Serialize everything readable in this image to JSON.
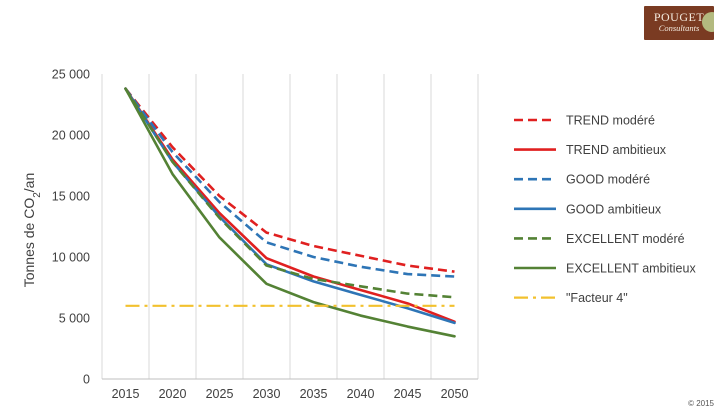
{
  "logo": {
    "name": "POUGET",
    "sub": "Consultants"
  },
  "copyright": "© 2015",
  "chart_data": {
    "type": "line",
    "title": "",
    "xlabel": "",
    "ylabel_main": "Tonnes de CO",
    "ylabel_sub": "2",
    "ylabel_tail": "/an",
    "x": [
      2015,
      2020,
      2025,
      2030,
      2035,
      2040,
      2045,
      2050
    ],
    "ylim": [
      0,
      25000
    ],
    "yticks": [
      0,
      5000,
      10000,
      15000,
      20000,
      25000
    ],
    "ytick_labels": [
      "0",
      "5 000",
      "10 000",
      "15 000",
      "20 000",
      "25 000"
    ],
    "grid": "vertical",
    "legend_position": "right",
    "series": [
      {
        "name": "TREND modéré",
        "color": "#e02020",
        "dash": "dashed",
        "values": [
          23800,
          19000,
          15000,
          12000,
          10900,
          10100,
          9300,
          8800
        ]
      },
      {
        "name": "TREND ambitieux",
        "color": "#e02020",
        "dash": "solid",
        "values": [
          23800,
          18000,
          13600,
          9900,
          8400,
          7300,
          6200,
          4700
        ]
      },
      {
        "name": "GOOD modéré",
        "color": "#2e75b6",
        "dash": "dashed",
        "values": [
          23800,
          18600,
          14500,
          11200,
          10000,
          9200,
          8600,
          8400
        ]
      },
      {
        "name": "GOOD ambitieux",
        "color": "#2e75b6",
        "dash": "solid",
        "values": [
          23800,
          17800,
          13300,
          9400,
          8000,
          6900,
          5800,
          4600
        ]
      },
      {
        "name": "EXCELLENT modéré",
        "color": "#548235",
        "dash": "dashed",
        "values": [
          23800,
          17800,
          13200,
          9300,
          8200,
          7600,
          7000,
          6700
        ]
      },
      {
        "name": "EXCELLENT ambitieux",
        "color": "#548235",
        "dash": "solid",
        "values": [
          23800,
          16800,
          11600,
          7800,
          6300,
          5200,
          4300,
          3500
        ]
      },
      {
        "name": "\"Facteur 4\"",
        "color": "#f2c12e",
        "dash": "dashdot",
        "values": [
          6000,
          6000,
          6000,
          6000,
          6000,
          6000,
          6000,
          6000
        ]
      }
    ]
  }
}
